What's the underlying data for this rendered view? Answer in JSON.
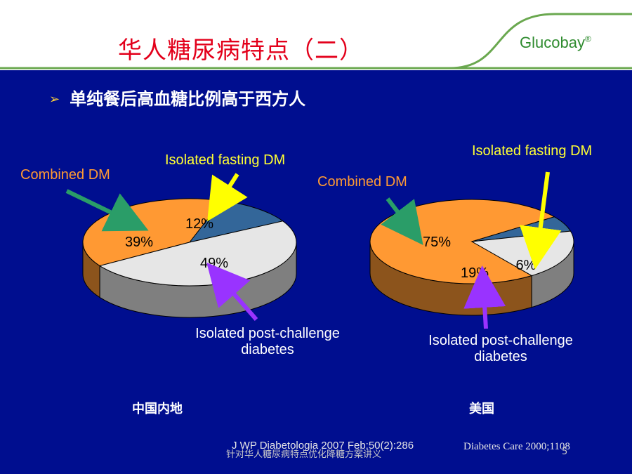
{
  "slide": {
    "title": "华人糖尿病特点（二）",
    "brand": "Glucobay",
    "brand_mark": "®",
    "bullet": "单纯餐后高血糖比例高于西方人",
    "footer_text": "针对华人糖尿病特点优化降糖方案讲义",
    "page_number": "5"
  },
  "labels": {
    "china_combined": "Combined DM",
    "china_fasting": "Isolated fasting DM",
    "china_post_line1": "Isolated post-challenge",
    "china_post_line2": "diabetes",
    "us_combined": "Combined DM",
    "us_fasting": "Isolated fasting DM",
    "us_post_line1": "Isolated post-challenge",
    "us_post_line2": "diabetes",
    "china_region": "中国内地",
    "us_region": "美国",
    "ref_china": "J WP Diabetologia 2007 Feb;50(2):286",
    "ref_us": "Diabetes Care 2000;1108"
  },
  "colors": {
    "background": "#000e8f",
    "title": "#e3001b",
    "combined": "#ff9933",
    "fasting": "#336699",
    "post_challenge": "#e6e6e6",
    "arrow_green": "#2a9d68",
    "arrow_yellow": "#ffff00",
    "arrow_purple": "#9933ff"
  },
  "chart_data": [
    {
      "type": "pie",
      "title": "中国内地",
      "categories": [
        "Combined DM",
        "Isolated fasting DM",
        "Isolated post-challenge diabetes"
      ],
      "values": [
        39,
        12,
        49
      ],
      "data_labels": [
        "39%",
        "12%",
        "49%"
      ]
    },
    {
      "type": "pie",
      "title": "美国",
      "categories": [
        "Combined DM",
        "Isolated fasting DM",
        "Isolated post-challenge diabetes"
      ],
      "values": [
        75,
        6,
        19
      ],
      "data_labels": [
        "75%",
        "6%",
        "19%"
      ]
    }
  ]
}
